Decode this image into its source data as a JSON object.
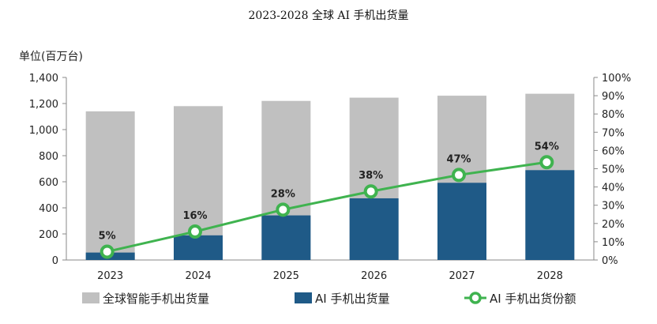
{
  "chart_data": {
    "type": "bar",
    "title": "2023-2028 全球 AI 手机出货量",
    "ylabel": "单位(百万台)",
    "categories": [
      "2023",
      "2024",
      "2025",
      "2026",
      "2027",
      "2028"
    ],
    "ylim": [
      0,
      1400
    ],
    "y_ticks": [
      "0",
      "200",
      "400",
      "600",
      "800",
      "1,000",
      "1,200",
      "1,400"
    ],
    "y2lim": [
      0,
      100
    ],
    "y2_ticks": [
      "0%",
      "10%",
      "20%",
      "30%",
      "40%",
      "50%",
      "60%",
      "70%",
      "80%",
      "90%",
      "100%"
    ],
    "grid": false,
    "legend_position": "bottom",
    "series": [
      {
        "name": "全球智能手机出货量",
        "type": "bar",
        "color": "#c0c0c0",
        "values": [
          1140,
          1180,
          1220,
          1245,
          1260,
          1275
        ]
      },
      {
        "name": "AI 手机出货量",
        "type": "bar",
        "color": "#1f5a87",
        "values": [
          57,
          189,
          342,
          473,
          592,
          689
        ]
      },
      {
        "name": "AI 手机出货份额",
        "type": "line",
        "axis": "right",
        "color": "#3fb34f",
        "values": [
          5,
          16,
          28,
          38,
          47,
          54
        ],
        "labels": [
          "5%",
          "16%",
          "28%",
          "38%",
          "47%",
          "54%"
        ]
      }
    ]
  }
}
